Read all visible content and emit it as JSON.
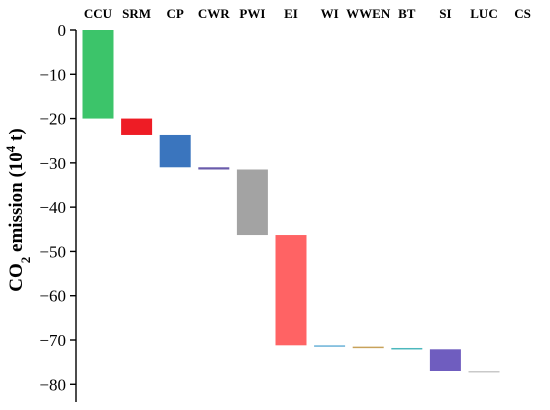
{
  "chart_data": {
    "type": "bar",
    "subtype": "waterfall",
    "categories": [
      "CCU",
      "SRM",
      "CP",
      "CWR",
      "PWI",
      "EI",
      "WI",
      "WWEN",
      "BT",
      "SI",
      "LUC",
      "CS"
    ],
    "values": [
      -20.0,
      -3.7,
      -7.3,
      -0.5,
      -14.8,
      -24.9,
      -0.3,
      -0.3,
      -0.3,
      -4.9,
      -0.2,
      0
    ],
    "colors": [
      "#3cc46a",
      "#ee1c25",
      "#3a75be",
      "#6a5bab",
      "#a3a3a3",
      "#ff6364",
      "#6ab2d8",
      "#c8a25a",
      "#4cb8bd",
      "#6f5dbf",
      "#c9c9c9",
      "#ffffff"
    ],
    "ylabel": "CO",
    "ylabel_sub": "2",
    "ylabel_rest": " emission (10",
    "ylabel_sup": "4",
    "ylabel_end": " t)",
    "yticks": [
      0,
      -10,
      -20,
      -30,
      -40,
      -50,
      -60,
      -70,
      -80
    ],
    "ytick_labels": [
      "0",
      "−10",
      "−20",
      "−30",
      "−40",
      "−50",
      "−60",
      "−70",
      "−80"
    ],
    "ylim": [
      -84,
      0
    ],
    "xaxis_position": "top",
    "grid": false
  }
}
